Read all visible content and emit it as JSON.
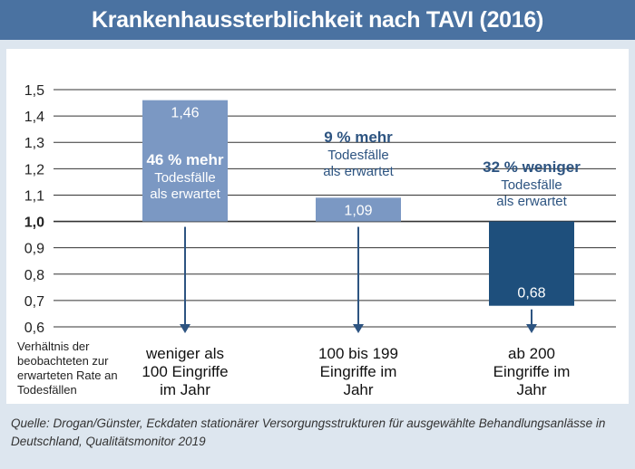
{
  "title": "Krankenhaussterblichkeit nach TAVI (2016)",
  "source": "Quelle: Drogan/Günster, Eckdaten stationärer Versorgungsstrukturen für ausgewählte Behandlungsanlässe in Deutschland, Qualitätsmonitor 2019",
  "colors": {
    "title_bar": "#4a72a1",
    "bar_light": "#7b98c3",
    "bar_dark": "#1e4f7c",
    "text_blue": "#2d5481",
    "grid": "#333333",
    "background": "#dde6ef"
  },
  "chart_data": {
    "type": "bar",
    "baseline": 1.0,
    "ylim": [
      0.6,
      1.5
    ],
    "yticks": [
      "1,5",
      "1,4",
      "1,3",
      "1,2",
      "1,1",
      "1,0",
      "0,9",
      "0,8",
      "0,7",
      "0,6"
    ],
    "ytick_values": [
      1.5,
      1.4,
      1.3,
      1.2,
      1.1,
      1.0,
      0.9,
      0.8,
      0.7,
      0.6
    ],
    "ylabel": "Verhältnis der beobachteten zur erwarteten Rate an Todesfällen",
    "ylabel_lines": [
      "Verhältnis der",
      "beobachteten zur",
      "erwarteten Rate an",
      "Todesfällen"
    ],
    "categories": [
      "weniger als 100 Eingriffe im Jahr",
      "100 bis 199 Eingriffe im Jahr",
      "ab 200 Eingriffe im Jahr"
    ],
    "category_lines": [
      [
        "weniger als",
        "100 Eingriffe",
        "im Jahr"
      ],
      [
        "100 bis 199",
        "Eingriffe im",
        "Jahr"
      ],
      [
        "ab 200",
        "Eingriffe im",
        "Jahr"
      ]
    ],
    "values": [
      1.46,
      1.09,
      0.68
    ],
    "value_labels": [
      "1,46",
      "1,09",
      "0,68"
    ],
    "annotations": [
      {
        "headline": "46 % mehr",
        "lines": [
          "Todesfälle",
          "als erwartet"
        ]
      },
      {
        "headline": "9 % mehr",
        "lines": [
          "Todesfälle",
          "als erwartet"
        ]
      },
      {
        "headline": "32 % weniger",
        "lines": [
          "Todesfälle",
          "als erwartet"
        ]
      }
    ]
  }
}
